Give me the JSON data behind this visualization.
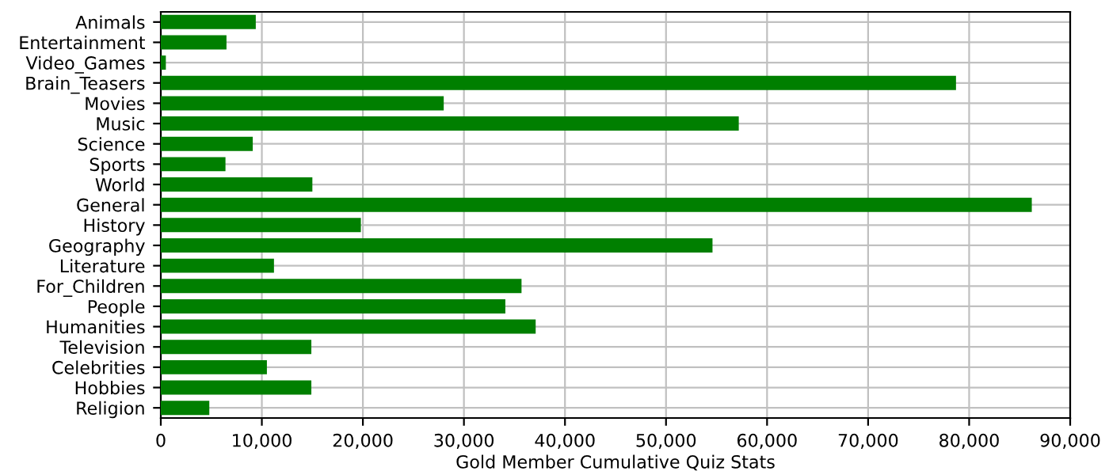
{
  "chart_data": {
    "type": "bar",
    "orientation": "horizontal",
    "xlabel": "Gold Member Cumulative Quiz Stats",
    "categories": [
      "Animals",
      "Entertainment",
      "Video_Games",
      "Brain_Teasers",
      "Movies",
      "Music",
      "Science",
      "Sports",
      "World",
      "General",
      "History",
      "Geography",
      "Literature",
      "For_Children",
      "People",
      "Humanities",
      "Television",
      "Celebrities",
      "Hobbies",
      "Religion"
    ],
    "values": [
      9400,
      6500,
      500,
      78700,
      28000,
      57200,
      9100,
      6400,
      15000,
      86200,
      19800,
      54600,
      11200,
      35700,
      34100,
      37100,
      14900,
      10500,
      14900,
      4800
    ],
    "color": "#007f00",
    "xlim": [
      0,
      90000
    ],
    "xticks": [
      {
        "value": 0,
        "label": "0"
      },
      {
        "value": 10000,
        "label": "10,000"
      },
      {
        "value": 20000,
        "label": "20,000"
      },
      {
        "value": 30000,
        "label": "30,000"
      },
      {
        "value": 40000,
        "label": "40,000"
      },
      {
        "value": 50000,
        "label": "50,000"
      },
      {
        "value": 60000,
        "label": "60,000"
      },
      {
        "value": 70000,
        "label": "70,000"
      },
      {
        "value": 80000,
        "label": "80,000"
      },
      {
        "value": 90000,
        "label": "90,000"
      }
    ],
    "grid": true
  }
}
